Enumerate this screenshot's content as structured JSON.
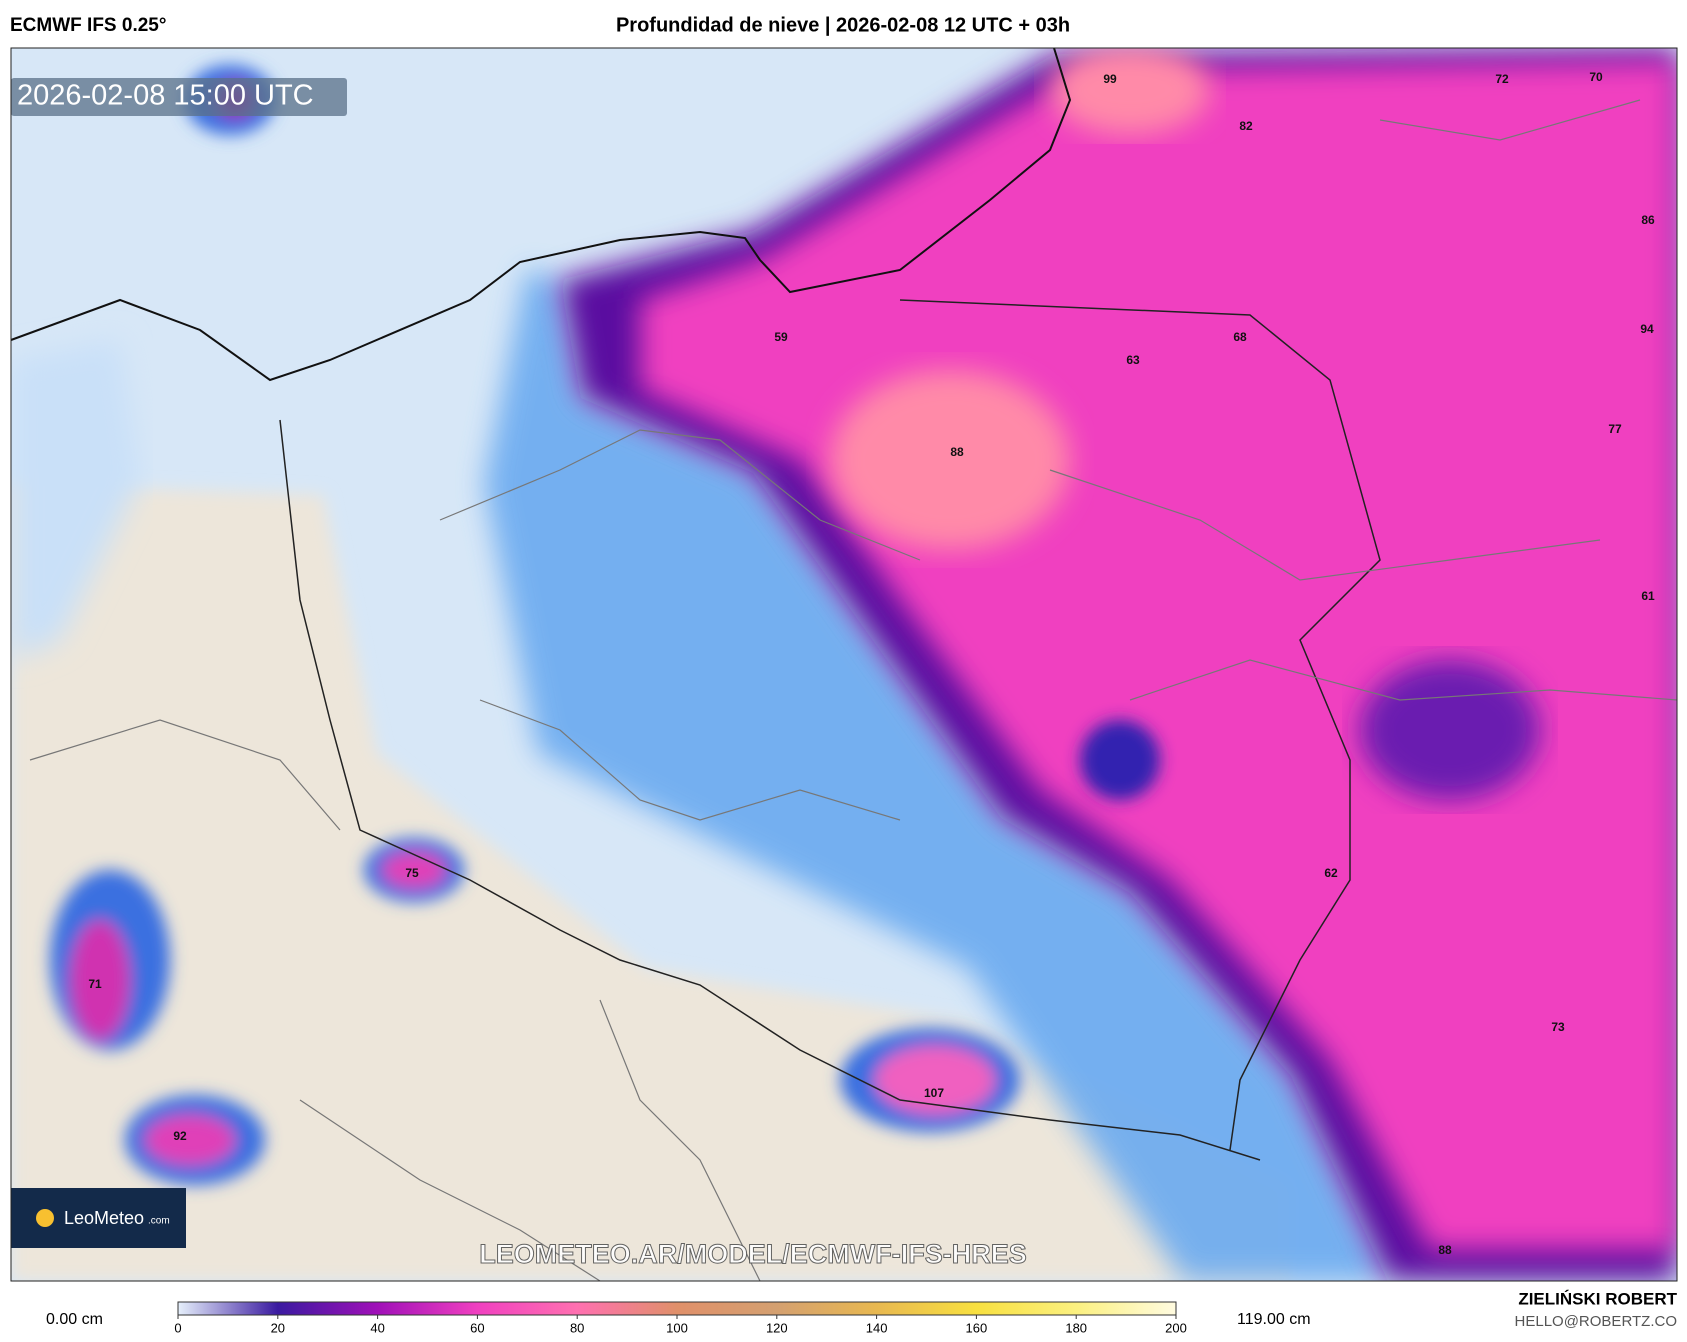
{
  "header": {
    "model": "ECMWF IFS 0.25°",
    "title": "Profundidad de nieve | 2026-02-08 12 UTC + 03h"
  },
  "map": {
    "valid_time": "2026-02-08 15:00 UTC",
    "watermark": "LEOMETEO.AR/MODEL/ECMWF-IFS-HRES",
    "labels": [
      99,
      72,
      70,
      82,
      86,
      59,
      63,
      68,
      94,
      88,
      77,
      61,
      75,
      62,
      71,
      73,
      107,
      92,
      88
    ]
  },
  "logo": {
    "name": "LeoMeteo",
    "suffix": ".com"
  },
  "colorbar": {
    "lim": [
      0,
      200
    ],
    "ticks": [
      0,
      20,
      40,
      60,
      80,
      100,
      120,
      140,
      160,
      180,
      200
    ],
    "colors": [
      "#e6f0fb",
      "#3a1aa0",
      "#a010b8",
      "#f040c0",
      "#ff70b0",
      "#e0906a",
      "#d4a070",
      "#e8b850",
      "#f8e040",
      "#fbf080",
      "#fffbe0"
    ],
    "min_label": "0.00 cm",
    "max_label": "119.00 cm"
  },
  "credit": {
    "author": "ZIELIŃSKI ROBERT",
    "email": "HELLO@ROBERTZ.CO"
  }
}
